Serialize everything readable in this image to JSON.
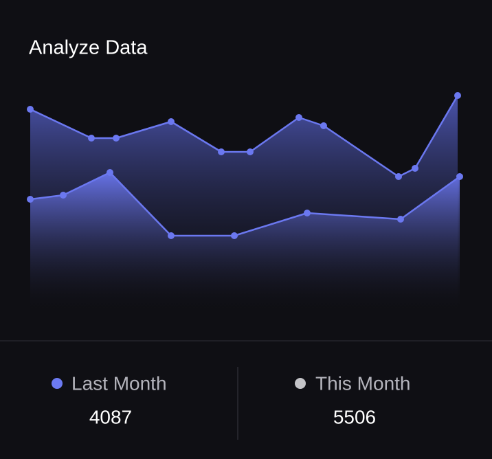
{
  "chart_data": {
    "type": "area",
    "title": "Analyze Data",
    "xlim": [
      0,
      625
    ],
    "ylim": [
      0,
      340
    ],
    "series": [
      {
        "color": "#6b78f0",
        "x": [
          0,
          89,
          125,
          205,
          278,
          320,
          391,
          427,
          536,
          560,
          622
        ],
        "values": [
          291,
          249,
          249,
          273,
          229,
          229,
          279,
          267,
          193,
          205,
          311
        ]
      },
      {
        "color": "#6b78f0",
        "x": [
          0,
          48,
          116,
          205,
          297,
          403,
          539,
          625
        ],
        "values": [
          160,
          166,
          199,
          107,
          107,
          140,
          131,
          193
        ]
      }
    ],
    "summary": [
      {
        "name": "Last Month",
        "color": "#6c7af2",
        "total": 4087
      },
      {
        "name": "This Month",
        "color": "#c4c4c8",
        "total": 5506
      }
    ]
  }
}
